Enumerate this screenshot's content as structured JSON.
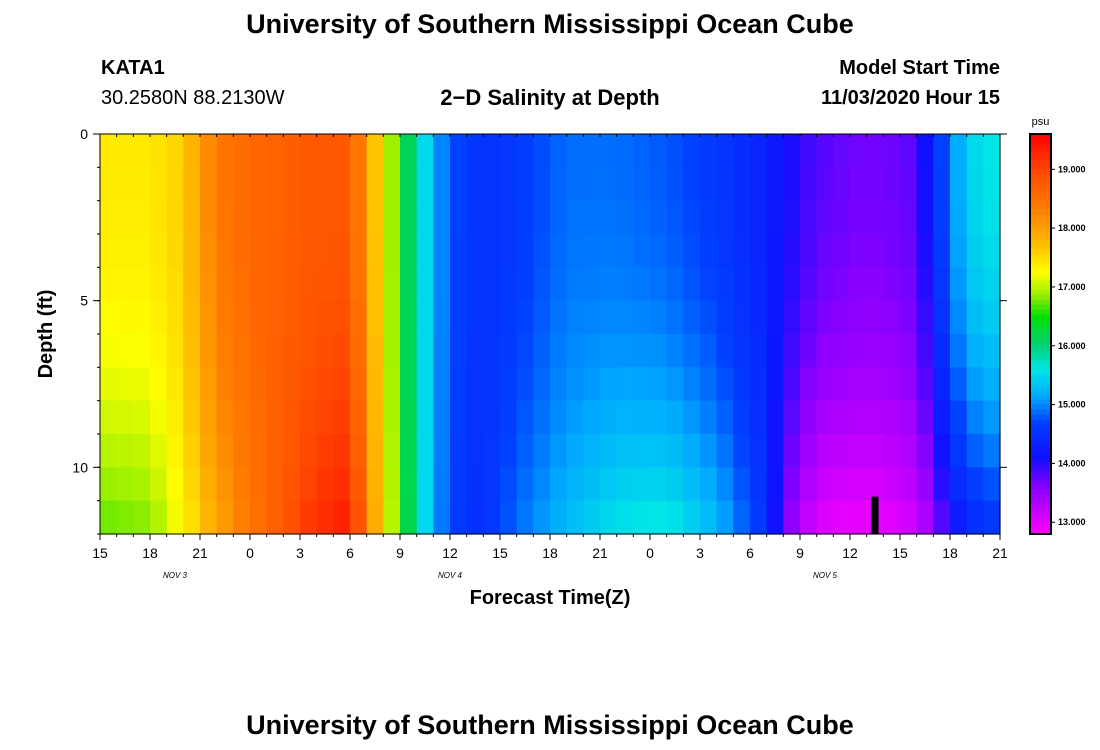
{
  "header": {
    "title": "University of Southern Mississippi Ocean Cube",
    "station": "KATA1",
    "coords": "30.2580N 88.2130W",
    "plot_title": "2−D Salinity at Depth",
    "start_label": "Model Start Time",
    "start_value": "11/03/2020 Hour 15"
  },
  "footer": {
    "title": "University of Southern Mississippi Ocean Cube"
  },
  "chart_data": {
    "type": "heatmap",
    "title": "2-D Salinity at Depth",
    "xlabel": "Forecast Time(Z)",
    "ylabel": "Depth (ft)",
    "x_tick_labels": [
      "15",
      "18",
      "21",
      "0",
      "3",
      "6",
      "9",
      "12",
      "15",
      "18",
      "21",
      "0",
      "3",
      "6",
      "9",
      "12",
      "15",
      "18",
      "21"
    ],
    "x_hours_range": [
      0,
      54
    ],
    "day_labels": [
      {
        "label": "NOV 3",
        "hour": 4.5
      },
      {
        "label": "NOV 4",
        "hour": 21
      },
      {
        "label": "NOV 5",
        "hour": 43.5
      }
    ],
    "y_tick_labels": [
      "0",
      "5",
      "10"
    ],
    "y_tick_values": [
      0,
      5,
      10
    ],
    "ylim": [
      0,
      12
    ],
    "depth_levels": [
      1,
      2,
      3,
      4,
      5,
      6,
      7,
      8,
      9,
      10,
      11,
      12
    ],
    "colorbar": {
      "unit": "psu",
      "labels": [
        "13.000",
        "14.000",
        "15.000",
        "16.000",
        "17.000",
        "18.000",
        "19.000"
      ],
      "range": [
        12.8,
        19.6
      ],
      "stops": [
        {
          "v": 12.8,
          "c": "#ff00ff"
        },
        {
          "v": 13.6,
          "c": "#8a00ff"
        },
        {
          "v": 14.1,
          "c": "#1010ff"
        },
        {
          "v": 14.7,
          "c": "#0040ff"
        },
        {
          "v": 15.15,
          "c": "#00a8ff"
        },
        {
          "v": 15.6,
          "c": "#00e6e6"
        },
        {
          "v": 16.05,
          "c": "#00d070"
        },
        {
          "v": 16.5,
          "c": "#00e000"
        },
        {
          "v": 16.85,
          "c": "#90ee00"
        },
        {
          "v": 17.25,
          "c": "#ffff00"
        },
        {
          "v": 17.7,
          "c": "#ffc000"
        },
        {
          "v": 18.3,
          "c": "#ff8000"
        },
        {
          "v": 18.9,
          "c": "#ff5000"
        },
        {
          "v": 19.6,
          "c": "#ff0000"
        }
      ]
    },
    "profile": {
      "hours": [
        0,
        3,
        5,
        7,
        9,
        11,
        13,
        15,
        17,
        18,
        19,
        20,
        21,
        22,
        23,
        25,
        28,
        31,
        34,
        37,
        40,
        41,
        42,
        43,
        44,
        45,
        47,
        49,
        50,
        51,
        52,
        53,
        54
      ],
      "surface": [
        17.4,
        17.4,
        17.6,
        18.4,
        18.6,
        18.7,
        18.8,
        18.8,
        17.3,
        16.5,
        15.8,
        15.2,
        14.8,
        14.6,
        14.5,
        14.6,
        14.9,
        14.9,
        14.8,
        14.6,
        14.3,
        14.1,
        14.0,
        13.8,
        13.8,
        13.7,
        13.7,
        13.8,
        14.4,
        15.0,
        15.4,
        15.6,
        15.6
      ],
      "bottom": [
        16.7,
        16.8,
        17.3,
        17.9,
        18.4,
        18.8,
        19.2,
        19.4,
        17.4,
        16.6,
        15.8,
        15.2,
        14.7,
        14.5,
        14.5,
        14.9,
        15.3,
        15.6,
        15.7,
        15.3,
        14.5,
        13.7,
        13.3,
        13.0,
        12.9,
        12.9,
        12.9,
        13.1,
        13.5,
        14.0,
        14.3,
        14.5,
        14.5
      ]
    },
    "marker": {
      "hour": 46.5,
      "depth_range": [
        11.0,
        12.0
      ]
    }
  }
}
